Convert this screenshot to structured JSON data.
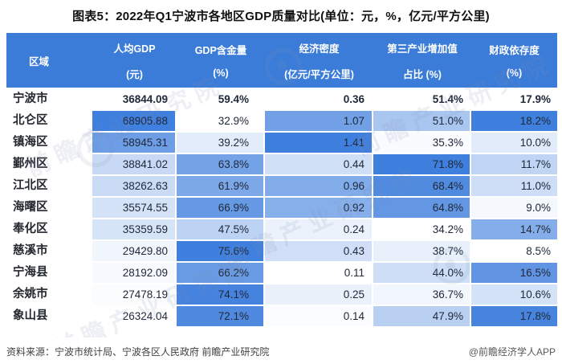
{
  "title": "图表5：2022年Q1宁波市各地区GDP质量对比(单位：元，%，亿元/平方公里)",
  "header": {
    "columns": [
      {
        "line1": "区域",
        "line2": ""
      },
      {
        "line1": "人均GDP",
        "line2": "(元)"
      },
      {
        "line1": "GDP含金量",
        "line2": "(%)"
      },
      {
        "line1": "经济密度",
        "line2": "(亿元/平方公里)"
      },
      {
        "line1": "第三产业增加值",
        "line2": "占比 (%)"
      },
      {
        "line1": "财政依存度",
        "line2": "(%)"
      }
    ]
  },
  "table": {
    "rows": [
      {
        "region": "宁波市",
        "display": [
          "36844.09",
          "59.4%",
          "0.36",
          "51.4%",
          "17.9%"
        ],
        "values": [
          36844.09,
          59.4,
          0.36,
          51.4,
          17.9
        ],
        "is_total": true
      },
      {
        "region": "北仑区",
        "display": [
          "68905.88",
          "32.9%",
          "1.07",
          "51.0%",
          "18.2%"
        ],
        "values": [
          68905.88,
          32.9,
          1.07,
          51.0,
          18.2
        ],
        "is_total": false
      },
      {
        "region": "镇海区",
        "display": [
          "58945.31",
          "39.2%",
          "1.41",
          "35.3%",
          "10.0%"
        ],
        "values": [
          58945.31,
          39.2,
          1.41,
          35.3,
          10.0
        ],
        "is_total": false
      },
      {
        "region": "鄞州区",
        "display": [
          "38841.02",
          "63.8%",
          "0.44",
          "71.8%",
          "11.7%"
        ],
        "values": [
          38841.02,
          63.8,
          0.44,
          71.8,
          11.7
        ],
        "is_total": false
      },
      {
        "region": "江北区",
        "display": [
          "38262.63",
          "61.9%",
          "0.96",
          "68.4%",
          "11.0%"
        ],
        "values": [
          38262.63,
          61.9,
          0.96,
          68.4,
          11.0
        ],
        "is_total": false
      },
      {
        "region": "海曙区",
        "display": [
          "35574.55",
          "66.9%",
          "0.92",
          "64.8%",
          "9.0%"
        ],
        "values": [
          35574.55,
          66.9,
          0.92,
          64.8,
          9.0
        ],
        "is_total": false
      },
      {
        "region": "奉化区",
        "display": [
          "35359.59",
          "47.5%",
          "0.24",
          "34.2%",
          "14.7%"
        ],
        "values": [
          35359.59,
          47.5,
          0.24,
          34.2,
          14.7
        ],
        "is_total": false
      },
      {
        "region": "慈溪市",
        "display": [
          "29429.80",
          "75.6%",
          "0.43",
          "38.7%",
          "8.5%"
        ],
        "values": [
          29429.8,
          75.6,
          0.43,
          38.7,
          8.5
        ],
        "is_total": false
      },
      {
        "region": "宁海县",
        "display": [
          "28192.09",
          "66.2%",
          "0.11",
          "44.0%",
          "16.5%"
        ],
        "values": [
          28192.09,
          66.2,
          0.11,
          44.0,
          16.5
        ],
        "is_total": false
      },
      {
        "region": "余姚市",
        "display": [
          "27478.19",
          "74.1%",
          "0.25",
          "36.7%",
          "10.6%"
        ],
        "values": [
          27478.19,
          74.1,
          0.25,
          36.7,
          10.6
        ],
        "is_total": false
      },
      {
        "region": "象山县",
        "display": [
          "26324.04",
          "72.1%",
          "0.14",
          "47.9%",
          "17.8%"
        ],
        "values": [
          26324.04,
          72.1,
          0.14,
          47.9,
          17.8
        ],
        "is_total": false
      }
    ]
  },
  "footer": {
    "source": "资料来源：宁波市统计局、宁波各区人民政府 前瞻产业研究院",
    "credit": "@前瞻经济学人APP"
  },
  "watermark": {
    "text": "前瞻产业研究院"
  },
  "colors": {
    "header_bg": "#3C7CD9",
    "header_text": "#FFFFFF",
    "scale_min": "#FFFFFF",
    "scale_max": "#3F7FDD",
    "total_row_bg": "#FFFFFF",
    "title_text": "#111111",
    "region_text": "#23272E",
    "value_text": "#20293A",
    "source_text": "#3F3F3F",
    "credit_text": "#595959"
  },
  "chart_data": {
    "type": "table",
    "title": "图表5：2022年Q1宁波市各地区GDP质量对比(单位：元，%，亿元/平方公里)",
    "columns": [
      "区域",
      "人均GDP(元)",
      "GDP含金量(%)",
      "经济密度(亿元/平方公里)",
      "第三产业增加值占比(%)",
      "财政依存度(%)"
    ],
    "rows": [
      [
        "宁波市",
        36844.09,
        59.4,
        0.36,
        51.4,
        17.9
      ],
      [
        "北仑区",
        68905.88,
        32.9,
        1.07,
        51.0,
        18.2
      ],
      [
        "镇海区",
        58945.31,
        39.2,
        1.41,
        35.3,
        10.0
      ],
      [
        "鄞州区",
        38841.02,
        63.8,
        0.44,
        71.8,
        11.7
      ],
      [
        "江北区",
        38262.63,
        61.9,
        0.96,
        68.4,
        11.0
      ],
      [
        "海曙区",
        35574.55,
        66.9,
        0.92,
        64.8,
        9.0
      ],
      [
        "奉化区",
        35359.59,
        47.5,
        0.24,
        34.2,
        14.7
      ],
      [
        "慈溪市",
        29429.8,
        75.6,
        0.43,
        38.7,
        8.5
      ],
      [
        "宁海县",
        28192.09,
        66.2,
        0.11,
        44.0,
        16.5
      ],
      [
        "余姚市",
        27478.19,
        74.1,
        0.25,
        36.7,
        10.6
      ],
      [
        "象山县",
        26324.04,
        72.1,
        0.14,
        47.9,
        17.8
      ]
    ],
    "style_note": "每列按数值大小做白到蓝色阶填充(宁波市汇总行无填充)",
    "legend_position": "none",
    "grid": false
  }
}
